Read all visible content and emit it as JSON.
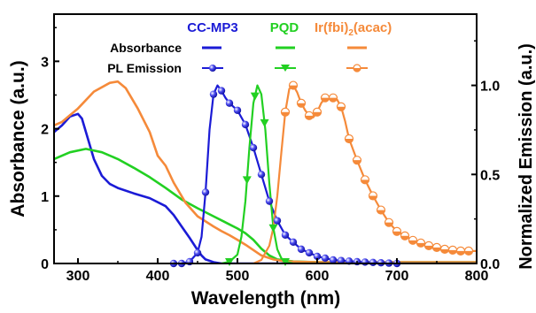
{
  "chart_data": {
    "type": "line",
    "xlabel": "Wavelength (nm)",
    "ylabel_left": "Absorbance (a.u.)",
    "ylabel_right": "Normalized Emission (a.u.)",
    "xlim": [
      270,
      800
    ],
    "ylim_left": [
      0,
      3.7
    ],
    "ylim_right": [
      0,
      1.4
    ],
    "xticks": [
      "300",
      "400",
      "500",
      "600",
      "700",
      "800"
    ],
    "xtick_values": [
      300,
      400,
      500,
      600,
      700,
      800
    ],
    "yticks_left": [
      "0",
      "1",
      "2",
      "3"
    ],
    "ytick_values_left": [
      0,
      1,
      2,
      3
    ],
    "yticks_right": [
      "0.0",
      "0.5",
      "1.0"
    ],
    "ytick_values_right": [
      0,
      0.5,
      1.0
    ],
    "legend": {
      "rows": [
        "Absorbance",
        "PL Emission"
      ],
      "columns": [
        {
          "name": "CC-MP3",
          "color": "#1b1bd6",
          "marker": "ball"
        },
        {
          "name": "PQD",
          "color": "#22d022",
          "marker": "triangle-down"
        },
        {
          "name": "Ir(fbi)",
          "subscript": "2",
          "suffix": "(acac)",
          "color": "#f58a3a",
          "marker": "half-circle"
        }
      ],
      "placement": "top"
    },
    "absorbance_series": [
      {
        "name": "CC-MP3",
        "color": "#1b1bd6",
        "x": [
          270,
          280,
          290,
          300,
          305,
          310,
          320,
          330,
          340,
          350,
          370,
          390,
          410,
          420,
          430,
          440,
          450,
          455,
          460,
          470,
          480,
          490,
          800
        ],
        "y": [
          1.95,
          2.05,
          2.18,
          2.22,
          2.15,
          1.95,
          1.55,
          1.3,
          1.18,
          1.12,
          1.04,
          0.97,
          0.85,
          0.72,
          0.55,
          0.38,
          0.2,
          0.12,
          0.06,
          0.02,
          0.0,
          0.0,
          0.0
        ]
      },
      {
        "name": "PQD",
        "color": "#22d022",
        "x": [
          270,
          290,
          310,
          330,
          350,
          370,
          390,
          410,
          430,
          450,
          470,
          490,
          500,
          510,
          520,
          530,
          540,
          550,
          570,
          600,
          800
        ],
        "y": [
          1.55,
          1.65,
          1.7,
          1.65,
          1.55,
          1.42,
          1.28,
          1.12,
          0.95,
          0.82,
          0.7,
          0.58,
          0.52,
          0.45,
          0.35,
          0.22,
          0.12,
          0.06,
          0.03,
          0.02,
          0.02
        ]
      },
      {
        "name": "Ir(fbi)2(acac)",
        "color": "#f58a3a",
        "x": [
          270,
          280,
          290,
          300,
          320,
          340,
          350,
          360,
          375,
          390,
          400,
          410,
          420,
          435,
          450,
          470,
          480,
          490,
          500,
          510,
          520,
          530,
          545,
          560,
          600,
          800
        ],
        "y": [
          2.05,
          2.1,
          2.2,
          2.3,
          2.55,
          2.68,
          2.7,
          2.6,
          2.3,
          1.95,
          1.6,
          1.45,
          1.2,
          0.9,
          0.7,
          0.55,
          0.48,
          0.42,
          0.35,
          0.28,
          0.2,
          0.12,
          0.06,
          0.03,
          0.02,
          0.02
        ]
      }
    ],
    "emission_series": [
      {
        "name": "CC-MP3",
        "color": "#1b1bd6",
        "marker": "ball",
        "x": [
          430,
          440,
          450,
          455,
          460,
          465,
          470,
          475,
          480,
          485,
          490,
          500,
          510,
          520,
          530,
          540,
          550,
          560,
          580,
          600,
          620,
          650,
          700,
          800
        ],
        "y": [
          0.0,
          0.01,
          0.06,
          0.15,
          0.4,
          0.75,
          0.95,
          1.0,
          0.97,
          0.93,
          0.9,
          0.86,
          0.78,
          0.65,
          0.5,
          0.35,
          0.24,
          0.16,
          0.08,
          0.04,
          0.02,
          0.01,
          0.0,
          0.0
        ],
        "marker_x": [
          420,
          430,
          440,
          450,
          460,
          470,
          480,
          490,
          500,
          510,
          520,
          530,
          540,
          550,
          560,
          570,
          580,
          590,
          600,
          610,
          620,
          630,
          640,
          650,
          660,
          670,
          680,
          690,
          700
        ]
      },
      {
        "name": "PQD",
        "color": "#22d022",
        "marker": "triangle-down",
        "x": [
          480,
          490,
          500,
          505,
          510,
          515,
          520,
          525,
          530,
          535,
          540,
          545,
          550,
          555,
          560,
          570,
          580,
          800
        ],
        "y": [
          0.0,
          0.01,
          0.05,
          0.15,
          0.35,
          0.65,
          0.9,
          1.0,
          0.95,
          0.75,
          0.45,
          0.2,
          0.08,
          0.03,
          0.01,
          0.0,
          0.0,
          0.0
        ],
        "marker_x": [
          490,
          512,
          522,
          534,
          545,
          560
        ]
      },
      {
        "name": "Ir(fbi)2(acac)",
        "color": "#f58a3a",
        "marker": "half-circle",
        "x": [
          520,
          530,
          540,
          545,
          550,
          555,
          560,
          565,
          570,
          575,
          580,
          585,
          590,
          595,
          600,
          605,
          610,
          615,
          620,
          625,
          630,
          635,
          640,
          650,
          660,
          670,
          680,
          690,
          700,
          720,
          740,
          760,
          780,
          800
        ],
        "y": [
          0.0,
          0.02,
          0.1,
          0.2,
          0.38,
          0.62,
          0.85,
          0.98,
          1.0,
          0.96,
          0.9,
          0.86,
          0.83,
          0.82,
          0.85,
          0.9,
          0.93,
          0.93,
          0.93,
          0.92,
          0.88,
          0.8,
          0.7,
          0.58,
          0.47,
          0.38,
          0.3,
          0.23,
          0.18,
          0.13,
          0.1,
          0.08,
          0.07,
          0.07
        ],
        "marker_x": [
          560,
          570,
          580,
          590,
          600,
          610,
          620,
          630,
          640,
          650,
          660,
          670,
          680,
          690,
          700,
          710,
          720,
          730,
          740,
          750,
          760,
          770,
          780,
          790
        ]
      }
    ]
  }
}
